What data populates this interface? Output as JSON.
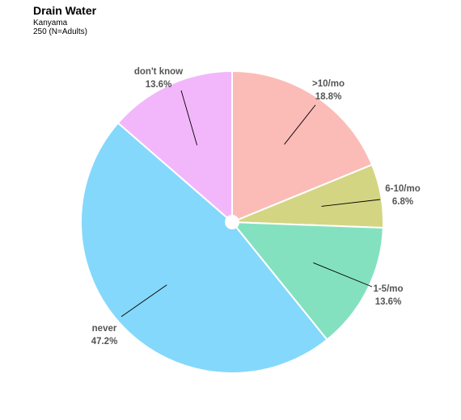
{
  "chart_data": {
    "type": "pie",
    "title": "Drain Water",
    "subtitle_lines": [
      "Kanyama",
      "250 (N=Adults)"
    ],
    "slices": [
      {
        "label": ">10/mo",
        "percent_label": "18.8%",
        "value": 18.8,
        "color": "#fbbcb8"
      },
      {
        "label": "6-10/mo",
        "percent_label": "6.8%",
        "value": 6.8,
        "color": "#d3d583"
      },
      {
        "label": "1-5/mo",
        "percent_label": "13.6%",
        "value": 13.6,
        "color": "#84e1c0"
      },
      {
        "label": "never",
        "percent_label": "47.2%",
        "value": 47.2,
        "color": "#84d8fb"
      },
      {
        "label": "don't know",
        "percent_label": "13.6%",
        "value": 13.6,
        "color": "#f2b7fb"
      }
    ]
  }
}
